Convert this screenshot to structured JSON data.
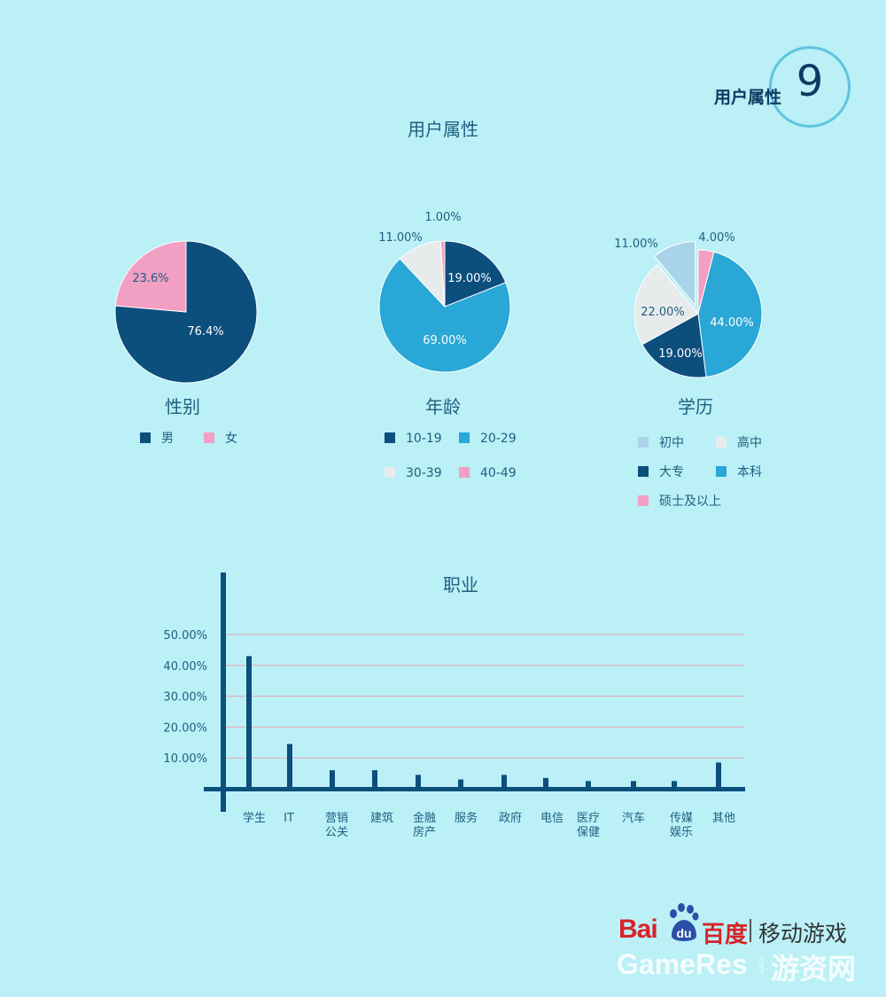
{
  "header": {
    "badge_label": "用户属性",
    "badge_number": "9",
    "page_title": "用户属性"
  },
  "colors": {
    "dark_blue": "#0c4e7c",
    "mid_blue": "#29a7d6",
    "light_gray": "#e8ebec",
    "pink": "#f29fc4",
    "light_blue": "#a9d3e8",
    "grid": "#e9a6b3",
    "axis": "#0c4e7c"
  },
  "chart_data": [
    {
      "type": "pie",
      "title": "性别",
      "slices": [
        {
          "name": "男",
          "value": 76.4,
          "label": "76.4%",
          "color": "#0c4e7c"
        },
        {
          "name": "女",
          "value": 23.6,
          "label": "23.6%",
          "color": "#f29fc4"
        }
      ],
      "legend": [
        "男",
        "女"
      ],
      "legend_placement": "bottom"
    },
    {
      "type": "pie",
      "title": "年龄",
      "slices": [
        {
          "name": "10-19",
          "value": 19.0,
          "label": "19.00%",
          "color": "#0c4e7c"
        },
        {
          "name": "20-29",
          "value": 69.0,
          "label": "69.00%",
          "color": "#29a7d6"
        },
        {
          "name": "30-39",
          "value": 11.0,
          "label": "11.00%",
          "color": "#e8ebec"
        },
        {
          "name": "40-49",
          "value": 1.0,
          "label": "1.00%",
          "color": "#f29fc4"
        }
      ],
      "legend": [
        "10-19",
        "20-29",
        "30-39",
        "40-49"
      ],
      "legend_placement": "bottom"
    },
    {
      "type": "pie",
      "title": "学历",
      "slices": [
        {
          "name": "硕士及以上",
          "value": 4.0,
          "label": "4.00%",
          "color": "#f29fc4"
        },
        {
          "name": "本科",
          "value": 44.0,
          "label": "44.00%",
          "color": "#29a7d6"
        },
        {
          "name": "大专",
          "value": 19.0,
          "label": "19.00%",
          "color": "#0c4e7c"
        },
        {
          "name": "高中",
          "value": 22.0,
          "label": "22.00%",
          "color": "#e8ebec"
        },
        {
          "name": "初中",
          "value": 11.0,
          "label": "11.00%",
          "color": "#a9d3e8",
          "exploded": true
        }
      ],
      "legend": [
        "初中",
        "高中",
        "大专",
        "本科",
        "硕士及以上"
      ],
      "legend_placement": "bottom"
    },
    {
      "type": "bar",
      "title": "职业",
      "categories": [
        "学生",
        "IT",
        "营销公关",
        "建筑",
        "金融房产",
        "服务",
        "政府",
        "电信",
        "医疗保健",
        "汽车",
        "传媒娱乐",
        "其他"
      ],
      "values": [
        43.0,
        14.5,
        6.0,
        6.0,
        4.5,
        3.0,
        4.5,
        3.5,
        2.5,
        2.5,
        2.5,
        8.5
      ],
      "yticks": [
        "10.00%",
        "20.00%",
        "30.00%",
        "40.00%",
        "50.00%"
      ],
      "ylim": [
        0,
        50
      ],
      "grid": true
    }
  ],
  "footer": {
    "logo_bai": "Bai",
    "logo_du": "du",
    "logo_cn": "百度",
    "logo_sub": "移动游戏",
    "watermark": "GameRes",
    "watermark_com": "com",
    "watermark_cn": "游资网"
  }
}
